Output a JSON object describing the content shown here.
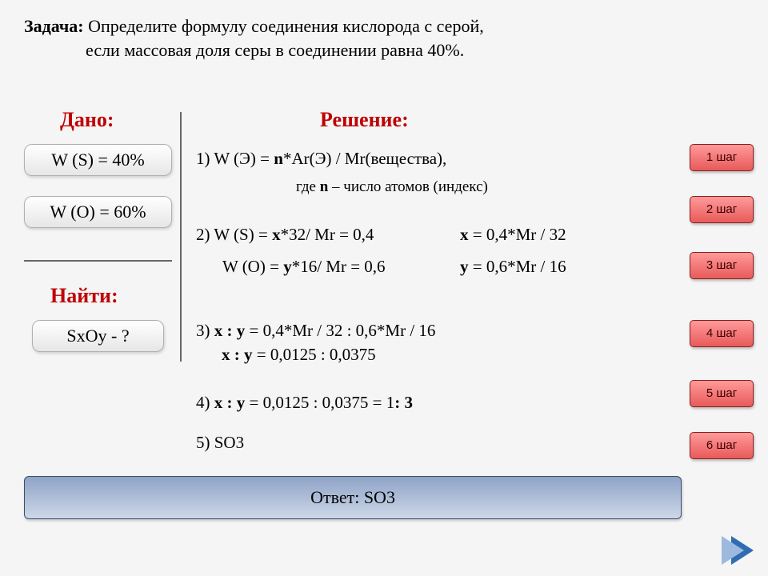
{
  "problem": {
    "label": "Задача:",
    "line1": "Определите формулу соединения кислорода с серой,",
    "line2": "если массовая доля серы в соединении равна 40%."
  },
  "headers": {
    "given": "Дано:",
    "solution": "Решение:",
    "find": "Найти:"
  },
  "given": {
    "sulfur": "W (S) = 40%",
    "oxygen": "W (O) = 60%",
    "unknown": "SxOy - ?",
    "qmark": "?"
  },
  "solution": {
    "l1_a": "1) W (Э) = ",
    "l1_b": "n",
    "l1_c": "*Ar(Э) / Mr(вещества),",
    "l1_note_a": "где ",
    "l1_note_b": "n",
    "l1_note_c": " – число атомов (индекс)",
    "l2a_a": "2) W (S) = ",
    "l2a_b": "x",
    "l2a_c": "*32/ Mr = 0,4",
    "l2b_a": "x",
    "l2b_b": " = 0,4*Mr / 32",
    "l2c_a": "W (O) = ",
    "l2c_b": "y",
    "l2c_c": "*16/ Mr = 0,6",
    "l2d_a": "y",
    "l2d_b": " = 0,6*Mr / 16",
    "l3a_a": "3) ",
    "l3a_b": "x : y",
    "l3a_c": " = 0,4*Mr / 32 : 0,6*Mr / 16",
    "l3b_a": "x : y",
    "l3b_b": " = 0,0125 : 0,0375",
    "l4_a": "4) ",
    "l4_b": "x : y",
    "l4_c": " = 0,0125 : 0,0375 = 1",
    "l4_d": ": 3",
    "l5": "5) SO3"
  },
  "answer": "Ответ: SO3",
  "steps": [
    "1 шаг",
    "2 шаг",
    "3 шаг",
    "4 шаг",
    "5 шаг",
    "6 шаг"
  ],
  "colors": {
    "accent_red": "#c00000",
    "button_red_top": "#ff9a9a",
    "button_red_bottom": "#e85a5a",
    "answer_top": "#8fa3c7",
    "answer_bottom": "#cdd7e8",
    "arrow": "#2f6db3"
  }
}
